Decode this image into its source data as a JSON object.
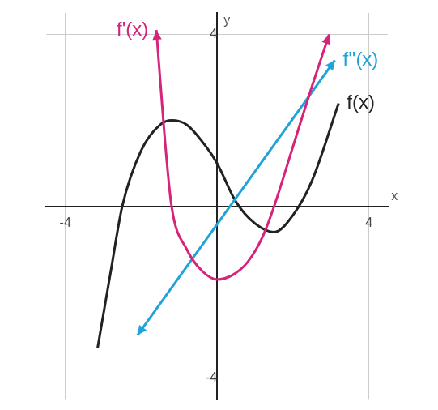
{
  "chart_data": {
    "type": "line",
    "x_label": "x",
    "y_label": "y",
    "xlim": [
      -4.5,
      4.5
    ],
    "ylim": [
      -4.5,
      4.5
    ],
    "xticks": [
      -4,
      4
    ],
    "yticks": [
      -4,
      4
    ],
    "grid": true,
    "series": [
      {
        "name": "f'(x)",
        "color": "#d6247a",
        "marker": "arrow",
        "x": [
          -1.6,
          -1.4,
          -1.2,
          -0.8,
          -0.4,
          0,
          0.4,
          0.8,
          1.2,
          1.5,
          2,
          2.5,
          2.95
        ],
        "values": [
          4.1,
          1.8,
          0,
          -1.0,
          -1.5,
          -1.7,
          -1.6,
          -1.3,
          -0.7,
          0,
          1.4,
          2.8,
          4.0
        ]
      },
      {
        "name": "f''(x)",
        "color": "#1fa3d8",
        "marker": "arrow",
        "x": [
          -2.1,
          3.1
        ],
        "values": [
          -3.0,
          3.4
        ]
      },
      {
        "name": "f(x)",
        "color": "#222222",
        "marker": "none",
        "x": [
          -3.15,
          -2.8,
          -2.5,
          -2,
          -1.5,
          -1.2,
          -0.8,
          -0.3,
          0,
          0.5,
          1,
          1.5,
          2,
          2.5,
          3.2
        ],
        "values": [
          -3.3,
          -1.5,
          0,
          1.3,
          1.9,
          2.0,
          1.9,
          1.4,
          1.0,
          0.1,
          -0.4,
          -0.6,
          -0.2,
          0.6,
          2.4
        ]
      }
    ]
  }
}
